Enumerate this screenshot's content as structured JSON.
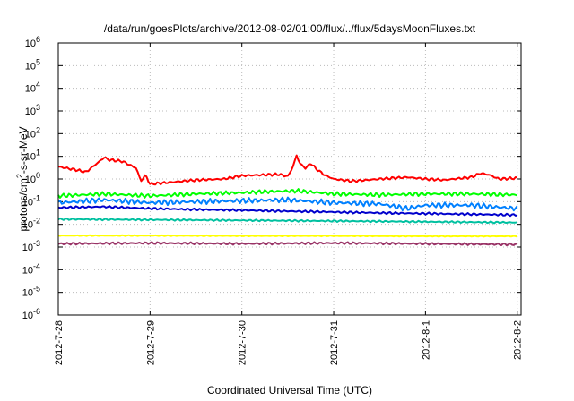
{
  "chart_data": {
    "type": "line",
    "title": "/data/run/goesPlots/archive/2012-08-02/01:00/flux/../flux/5daysMoonFluxes.txt",
    "xlabel": "Coordinated Universal Time (UTC)",
    "ylabel_base": "protons/cm",
    "ylabel_sup": "2",
    "ylabel_rest": "-s-sr-MeV",
    "yscale": "log",
    "ylim_exp": [
      -6,
      6
    ],
    "y_ticks": [
      {
        "base": "10",
        "exp": "-6",
        "v": -6
      },
      {
        "base": "10",
        "exp": "-5",
        "v": -5
      },
      {
        "base": "10",
        "exp": "-4",
        "v": -4
      },
      {
        "base": "10",
        "exp": "-3",
        "v": -3
      },
      {
        "base": "10",
        "exp": "-2",
        "v": -2
      },
      {
        "base": "10",
        "exp": "-1",
        "v": -1
      },
      {
        "base": "10",
        "exp": "0",
        "v": 0
      },
      {
        "base": "10",
        "exp": "1",
        "v": 1
      },
      {
        "base": "10",
        "exp": "2",
        "v": 2
      },
      {
        "base": "10",
        "exp": "3",
        "v": 3
      },
      {
        "base": "10",
        "exp": "4",
        "v": 4
      },
      {
        "base": "10",
        "exp": "5",
        "v": 5
      },
      {
        "base": "10",
        "exp": "6",
        "v": 6
      }
    ],
    "x_ticks": [
      "2012-7-28",
      "2012-7-29",
      "2012-7-30",
      "2012-7-31",
      "2012-8-1",
      "2012-8-2"
    ],
    "x_range_days": [
      "2012-7-28 00:00",
      "2012-8-2 01:00"
    ],
    "grid": true,
    "legend": "none",
    "series": [
      {
        "color": "#ff0000",
        "x_days": [
          0,
          0.2,
          0.3,
          0.45,
          0.5,
          0.55,
          0.7,
          0.85,
          0.9,
          0.95,
          1.0,
          1.2,
          1.5,
          1.8,
          2.0,
          2.2,
          2.4,
          2.5,
          2.55,
          2.6,
          2.62,
          2.65,
          2.7,
          2.75,
          2.8,
          2.9,
          3.0,
          3.2,
          3.5,
          3.8,
          4.0,
          4.2,
          4.5,
          4.6,
          4.7,
          4.8,
          5.0
        ],
        "values": [
          3.5,
          2.5,
          2.0,
          6.0,
          9.0,
          7.0,
          6.0,
          3.0,
          0.8,
          1.5,
          0.6,
          0.7,
          0.9,
          1.0,
          1.4,
          1.5,
          1.6,
          1.3,
          3.0,
          12.0,
          6.0,
          4.0,
          3.0,
          5.0,
          3.0,
          1.5,
          1.0,
          0.8,
          1.0,
          1.2,
          1.0,
          0.9,
          1.2,
          1.8,
          1.5,
          1.0,
          1.1
        ]
      },
      {
        "color": "#00ff00",
        "x_days": [
          0,
          0.5,
          1.0,
          1.5,
          2.0,
          2.3,
          2.6,
          3.0,
          3.5,
          4.0,
          4.5,
          5.0
        ],
        "values": [
          0.18,
          0.22,
          0.18,
          0.22,
          0.25,
          0.28,
          0.3,
          0.22,
          0.2,
          0.22,
          0.22,
          0.2
        ]
      },
      {
        "color": "#0080ff",
        "x_days": [
          0,
          0.5,
          1.0,
          1.5,
          2.0,
          2.5,
          3.0,
          3.5,
          3.8,
          4.0,
          4.5,
          5.0
        ],
        "values": [
          0.09,
          0.12,
          0.09,
          0.1,
          0.11,
          0.12,
          0.09,
          0.08,
          0.05,
          0.07,
          0.07,
          0.05
        ]
      },
      {
        "color": "#0000cc",
        "x_days": [
          0,
          0.5,
          1.0,
          1.5,
          2.0,
          2.5,
          3.0,
          3.5,
          4.0,
          4.5,
          5.0
        ],
        "values": [
          0.055,
          0.06,
          0.05,
          0.045,
          0.042,
          0.038,
          0.035,
          0.032,
          0.03,
          0.028,
          0.026
        ]
      },
      {
        "color": "#00c0a0",
        "x_days": [
          0,
          1.0,
          2.0,
          3.0,
          4.0,
          5.0
        ],
        "values": [
          0.017,
          0.016,
          0.015,
          0.014,
          0.013,
          0.012
        ]
      },
      {
        "color": "#ffff00",
        "x_days": [
          0,
          1.0,
          2.0,
          3.0,
          4.0,
          5.0
        ],
        "values": [
          0.0032,
          0.0032,
          0.0031,
          0.0031,
          0.003,
          0.003
        ]
      },
      {
        "color": "#993366",
        "x_days": [
          0,
          1.0,
          2.0,
          3.0,
          4.0,
          5.0
        ],
        "values": [
          0.0014,
          0.0015,
          0.0014,
          0.0015,
          0.0014,
          0.0013
        ]
      }
    ]
  }
}
